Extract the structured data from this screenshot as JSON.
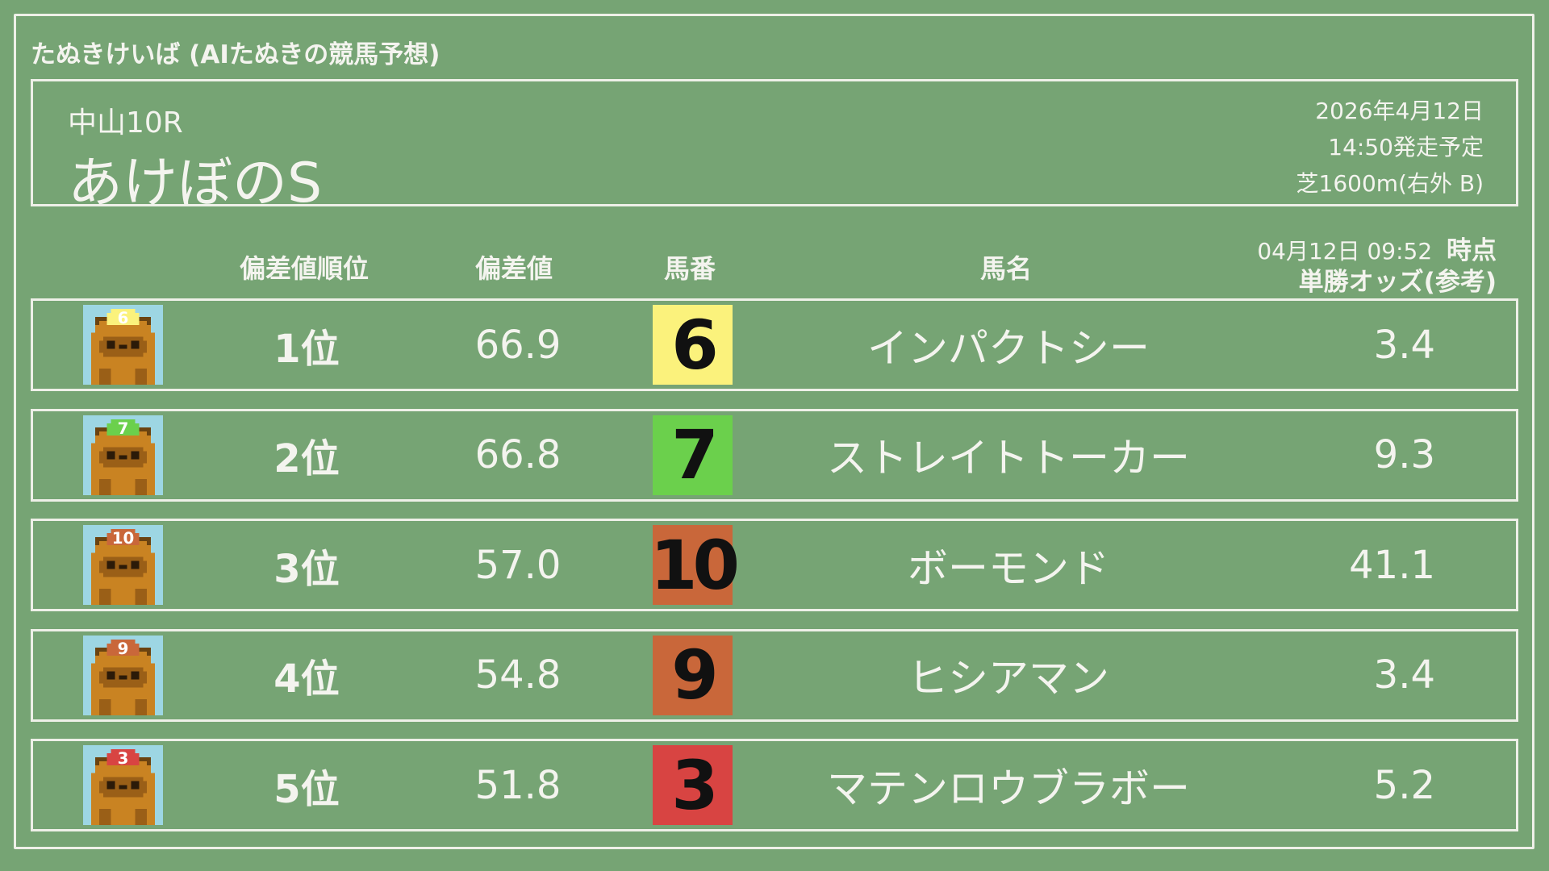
{
  "app": {
    "title": "たぬきけいば (AIたぬきの競馬予想)"
  },
  "race": {
    "venue": "中山10R",
    "name": "あけぼのS",
    "date": "2026年4月12日",
    "start": "14:50発走予定",
    "course": "芝1600m(右外 B)"
  },
  "columns": {
    "rank": "偏差値順位",
    "score": "偏差値",
    "number": "馬番",
    "horse": "馬名",
    "odds_time": "04月12日 09:52",
    "odds_time_suffix": "時点",
    "odds": "単勝オッズ(参考)"
  },
  "rows": [
    {
      "rank": "1位",
      "score": "66.9",
      "number": "6",
      "horse": "インパクトシー",
      "odds": "3.4",
      "color": "#fbf27c"
    },
    {
      "rank": "2位",
      "score": "66.8",
      "number": "7",
      "horse": "ストレイトトーカー",
      "odds": "9.3",
      "color": "#6bd04c"
    },
    {
      "rank": "3位",
      "score": "57.0",
      "number": "10",
      "horse": "ボーモンド",
      "odds": "41.1",
      "color": "#c9673a"
    },
    {
      "rank": "4位",
      "score": "54.8",
      "number": "9",
      "horse": "ヒシアマン",
      "odds": "3.4",
      "color": "#c9673a"
    },
    {
      "rank": "5位",
      "score": "51.8",
      "number": "3",
      "horse": "マテンロウブラボー",
      "odds": "5.2",
      "color": "#d84442"
    }
  ],
  "colors": {
    "background": "#76a474",
    "chalk": "#eef0e8",
    "icon_bg": "#9dd6e3",
    "tanuki": "#c98322"
  }
}
